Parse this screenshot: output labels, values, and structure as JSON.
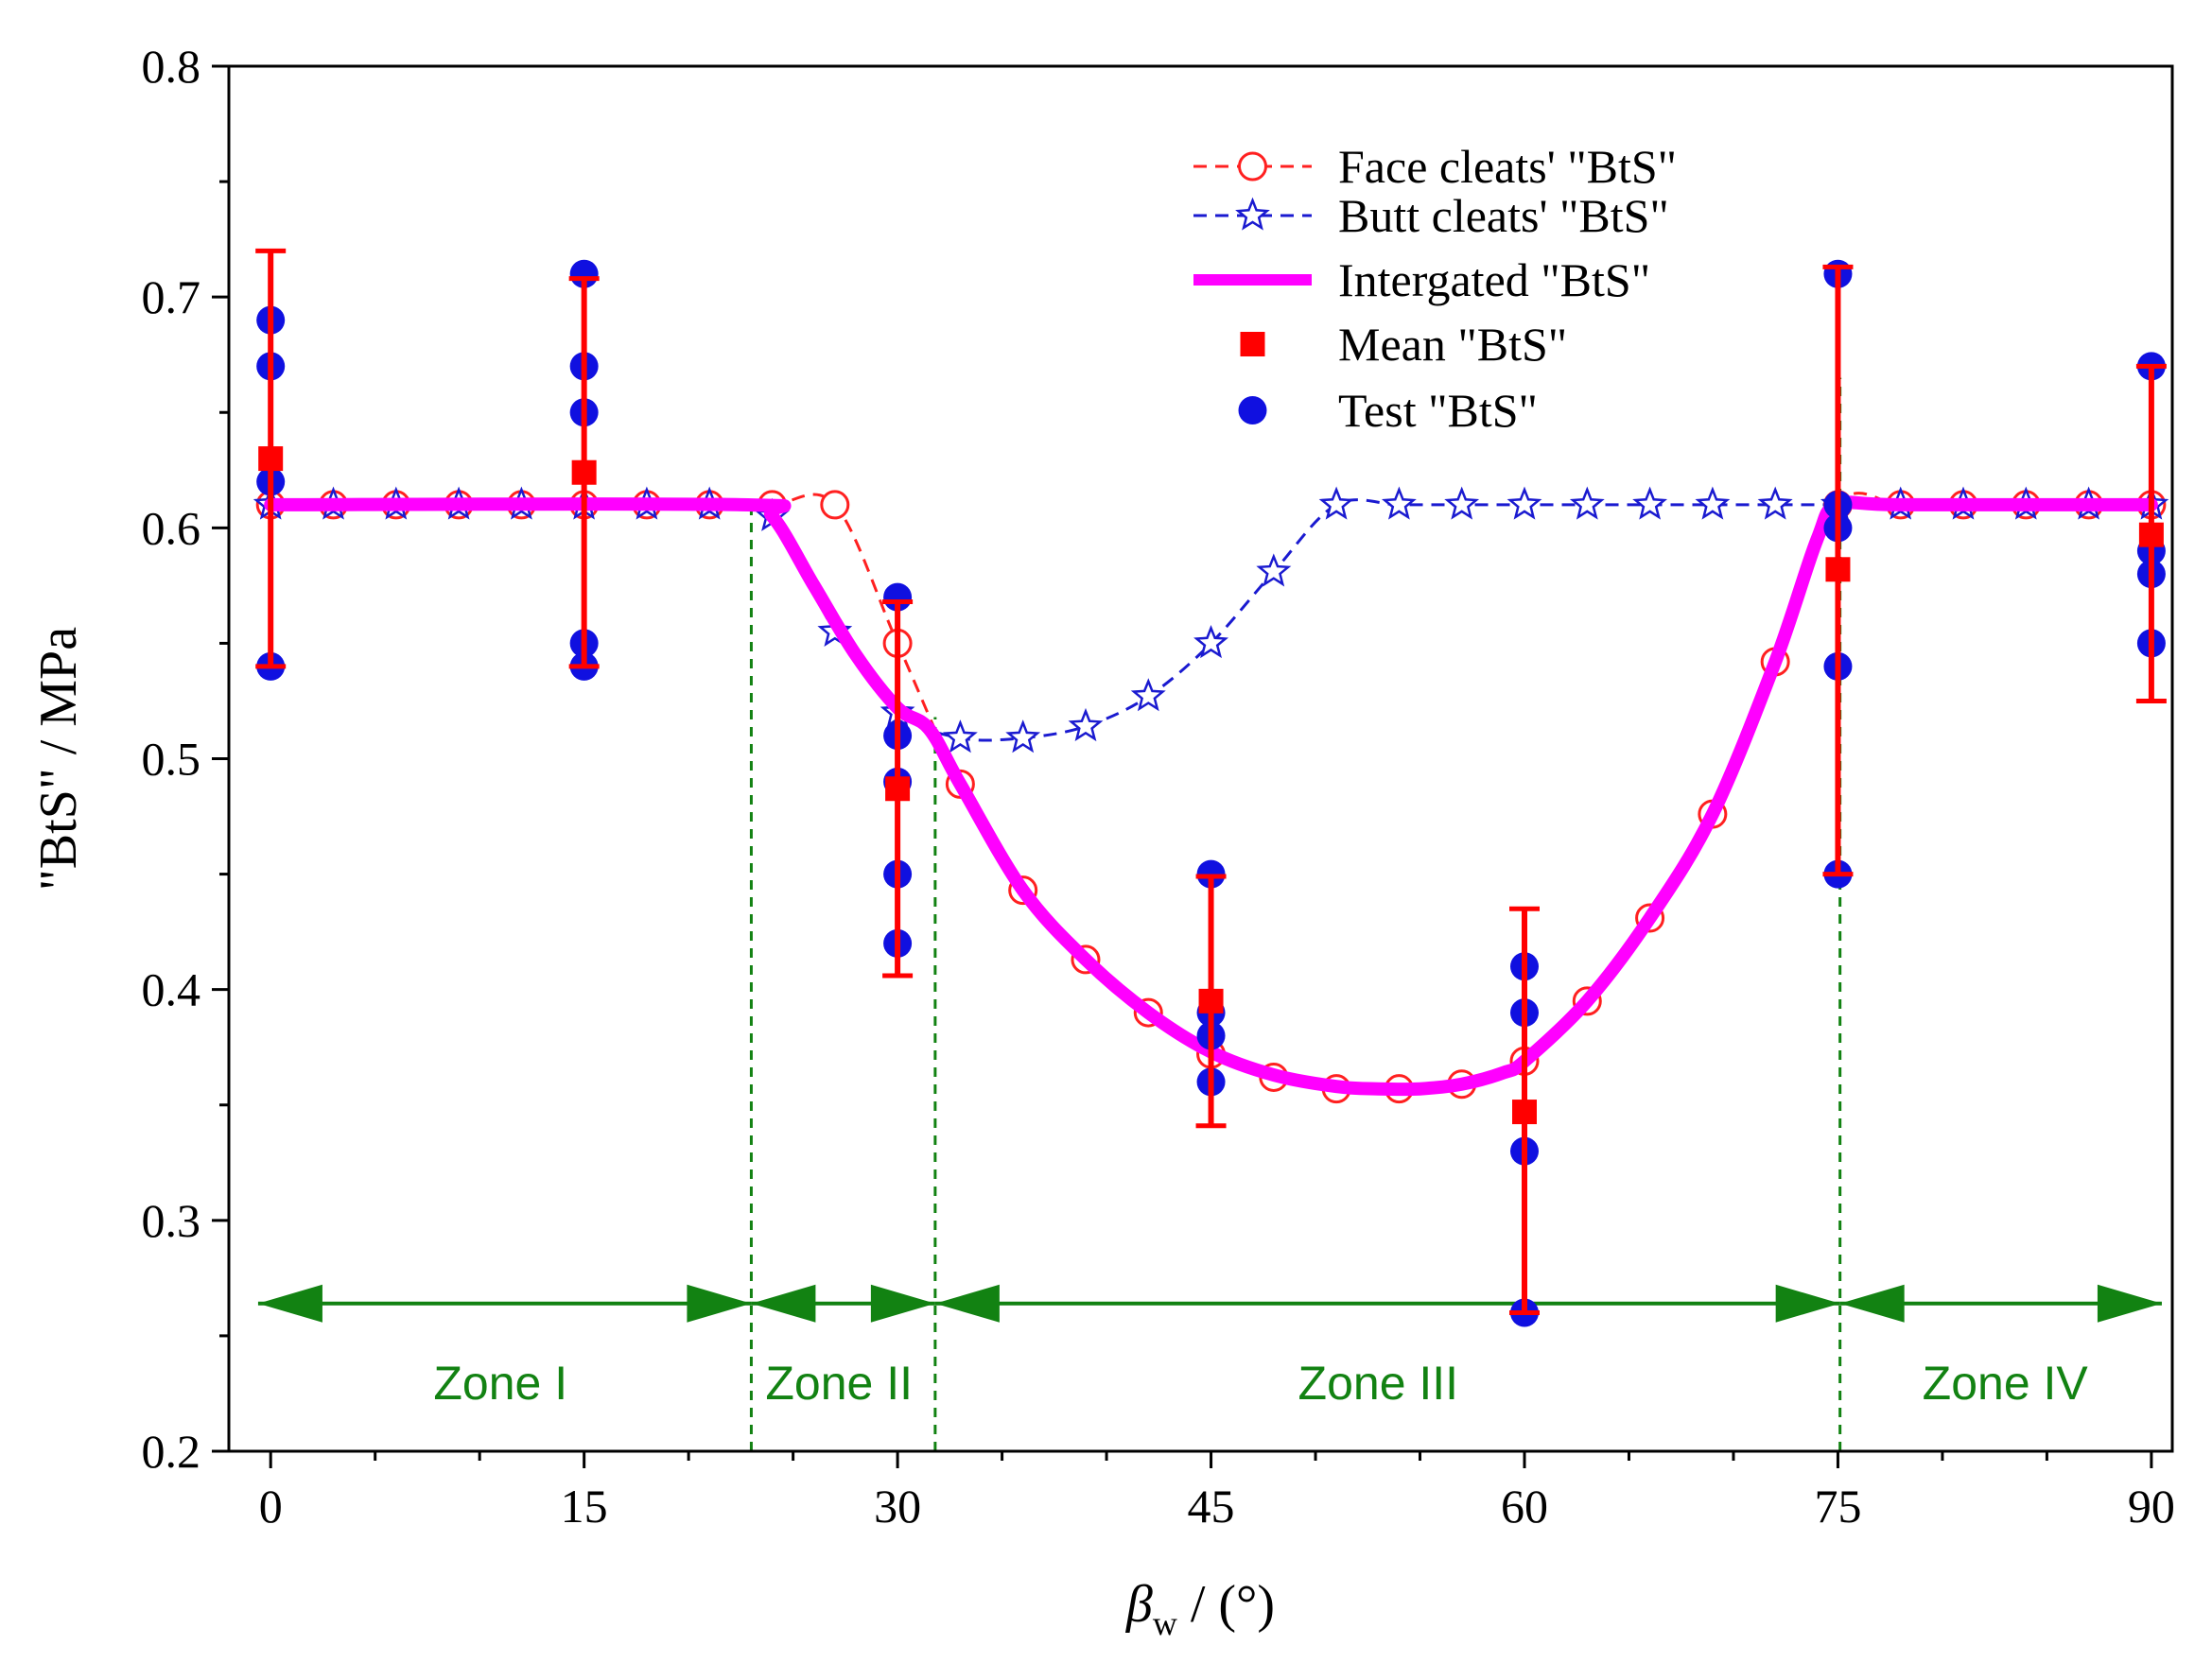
{
  "chart_data": {
    "type": "line",
    "xlabel_symbol": "β",
    "xlabel_sub": "w",
    "xlabel_unit": " / (°)",
    "ylabel": "\"BtS\" / MPa",
    "xlim": [
      -2,
      91
    ],
    "ylim": [
      0.2,
      0.8
    ],
    "x_ticks": [
      0,
      15,
      30,
      45,
      60,
      75,
      90
    ],
    "x_tick_labels": [
      "0",
      "15",
      "30",
      "45",
      "60",
      "75",
      "90"
    ],
    "y_ticks": [
      0.2,
      0.3,
      0.4,
      0.5,
      0.6,
      0.7,
      0.8
    ],
    "y_tick_labels": [
      "0.2",
      "0.3",
      "0.4",
      "0.5",
      "0.6",
      "0.7",
      "0.8"
    ],
    "legend_position": "top-right",
    "series": [
      {
        "name": "Face cleats' \"BtS\"",
        "style": "dashed-open-circle",
        "color": "#ff2020",
        "x": [
          0,
          3,
          6,
          9,
          12,
          15,
          18,
          21,
          24,
          27,
          30,
          33,
          36,
          39,
          42,
          45,
          48,
          51,
          54,
          57,
          60,
          63,
          66,
          69,
          72,
          75,
          78,
          81,
          84,
          87,
          90
        ],
        "y": [
          0.61,
          0.61,
          0.61,
          0.61,
          0.61,
          0.61,
          0.61,
          0.61,
          0.61,
          0.61,
          0.55,
          0.489,
          0.443,
          0.413,
          0.39,
          0.372,
          0.362,
          0.357,
          0.357,
          0.359,
          0.369,
          0.395,
          0.431,
          0.476,
          0.542,
          0.61,
          0.61,
          0.61,
          0.61,
          0.61,
          0.61
        ]
      },
      {
        "name": "Butt cleats' \"BtS\"",
        "style": "dashed-open-star",
        "color": "#1a1ad0",
        "x": [
          0,
          3,
          6,
          9,
          12,
          15,
          18,
          21,
          24,
          27,
          30,
          33,
          36,
          39,
          42,
          45,
          48,
          51,
          54,
          57,
          60,
          63,
          66,
          69,
          72,
          75,
          78,
          81,
          84,
          87,
          90
        ],
        "y": [
          0.61,
          0.61,
          0.61,
          0.61,
          0.61,
          0.61,
          0.61,
          0.61,
          0.605,
          0.555,
          0.52,
          0.509,
          0.509,
          0.514,
          0.527,
          0.55,
          0.581,
          0.61,
          0.61,
          0.61,
          0.61,
          0.61,
          0.61,
          0.61,
          0.61,
          0.61,
          0.61,
          0.61,
          0.61,
          0.61,
          0.61
        ]
      },
      {
        "name": "Intergated \"BtS\"",
        "style": "solid-thick",
        "color": "#ff00ff",
        "x": [
          0,
          22.5,
          24,
          26,
          28,
          30,
          31.5,
          33,
          36,
          39,
          42,
          45,
          48,
          51,
          53,
          55,
          57,
          59,
          60,
          63,
          66,
          69,
          72,
          74,
          75,
          78,
          90
        ],
        "y": [
          0.61,
          0.61,
          0.605,
          0.575,
          0.545,
          0.522,
          0.513,
          0.489,
          0.443,
          0.413,
          0.39,
          0.373,
          0.363,
          0.358,
          0.357,
          0.357,
          0.359,
          0.364,
          0.369,
          0.395,
          0.431,
          0.476,
          0.542,
          0.595,
          0.61,
          0.61,
          0.61
        ]
      },
      {
        "name": "Mean \"BtS\"",
        "style": "filled-square-errorbar",
        "color": "#ff0000",
        "x": [
          0,
          15,
          30,
          45,
          60,
          75,
          90
        ],
        "y": [
          0.63,
          0.624,
          0.487,
          0.395,
          0.347,
          0.582,
          0.597
        ],
        "err_low": [
          0.54,
          0.54,
          0.406,
          0.341,
          0.26,
          0.45,
          0.525
        ],
        "err_high": [
          0.72,
          0.708,
          0.568,
          0.449,
          0.435,
          0.713,
          0.67
        ]
      },
      {
        "name": "Test \"BtS\"",
        "style": "filled-circle",
        "color": "#1010e0",
        "points": [
          {
            "x": 0,
            "y": 0.69
          },
          {
            "x": 0,
            "y": 0.67
          },
          {
            "x": 0,
            "y": 0.62
          },
          {
            "x": 0,
            "y": 0.54
          },
          {
            "x": 15,
            "y": 0.71
          },
          {
            "x": 15,
            "y": 0.67
          },
          {
            "x": 15,
            "y": 0.65
          },
          {
            "x": 15,
            "y": 0.55
          },
          {
            "x": 15,
            "y": 0.54
          },
          {
            "x": 30,
            "y": 0.57
          },
          {
            "x": 30,
            "y": 0.51
          },
          {
            "x": 30,
            "y": 0.49
          },
          {
            "x": 30,
            "y": 0.45
          },
          {
            "x": 30,
            "y": 0.42
          },
          {
            "x": 45,
            "y": 0.45
          },
          {
            "x": 45,
            "y": 0.39
          },
          {
            "x": 45,
            "y": 0.38
          },
          {
            "x": 45,
            "y": 0.36
          },
          {
            "x": 60,
            "y": 0.41
          },
          {
            "x": 60,
            "y": 0.39
          },
          {
            "x": 60,
            "y": 0.33
          },
          {
            "x": 60,
            "y": 0.26
          },
          {
            "x": 75,
            "y": 0.71
          },
          {
            "x": 75,
            "y": 0.61
          },
          {
            "x": 75,
            "y": 0.6
          },
          {
            "x": 75,
            "y": 0.54
          },
          {
            "x": 75,
            "y": 0.45
          },
          {
            "x": 90,
            "y": 0.67
          },
          {
            "x": 90,
            "y": 0.59
          },
          {
            "x": 90,
            "y": 0.58
          },
          {
            "x": 90,
            "y": 0.55
          }
        ]
      }
    ],
    "zone_boundaries": [
      {
        "x": 23,
        "y_top": 0.61
      },
      {
        "x": 31.8,
        "y_top": 0.518
      },
      {
        "x": 75.1,
        "y_top": 0.665
      }
    ],
    "zone_arrow_y": 0.264,
    "zones": [
      {
        "label": "Zone I",
        "x_start": -0.6,
        "x_end": 23,
        "label_x": 11
      },
      {
        "label": "Zone II",
        "x_start": 23,
        "x_end": 31.8,
        "label_x": 27.2
      },
      {
        "label": "Zone III",
        "x_start": 31.8,
        "x_end": 75.1,
        "label_x": 53
      },
      {
        "label": "Zone IV",
        "x_start": 75.1,
        "x_end": 90.5,
        "label_x": 83
      }
    ],
    "zone_label_y": 0.23,
    "zone_color": "#128212"
  }
}
